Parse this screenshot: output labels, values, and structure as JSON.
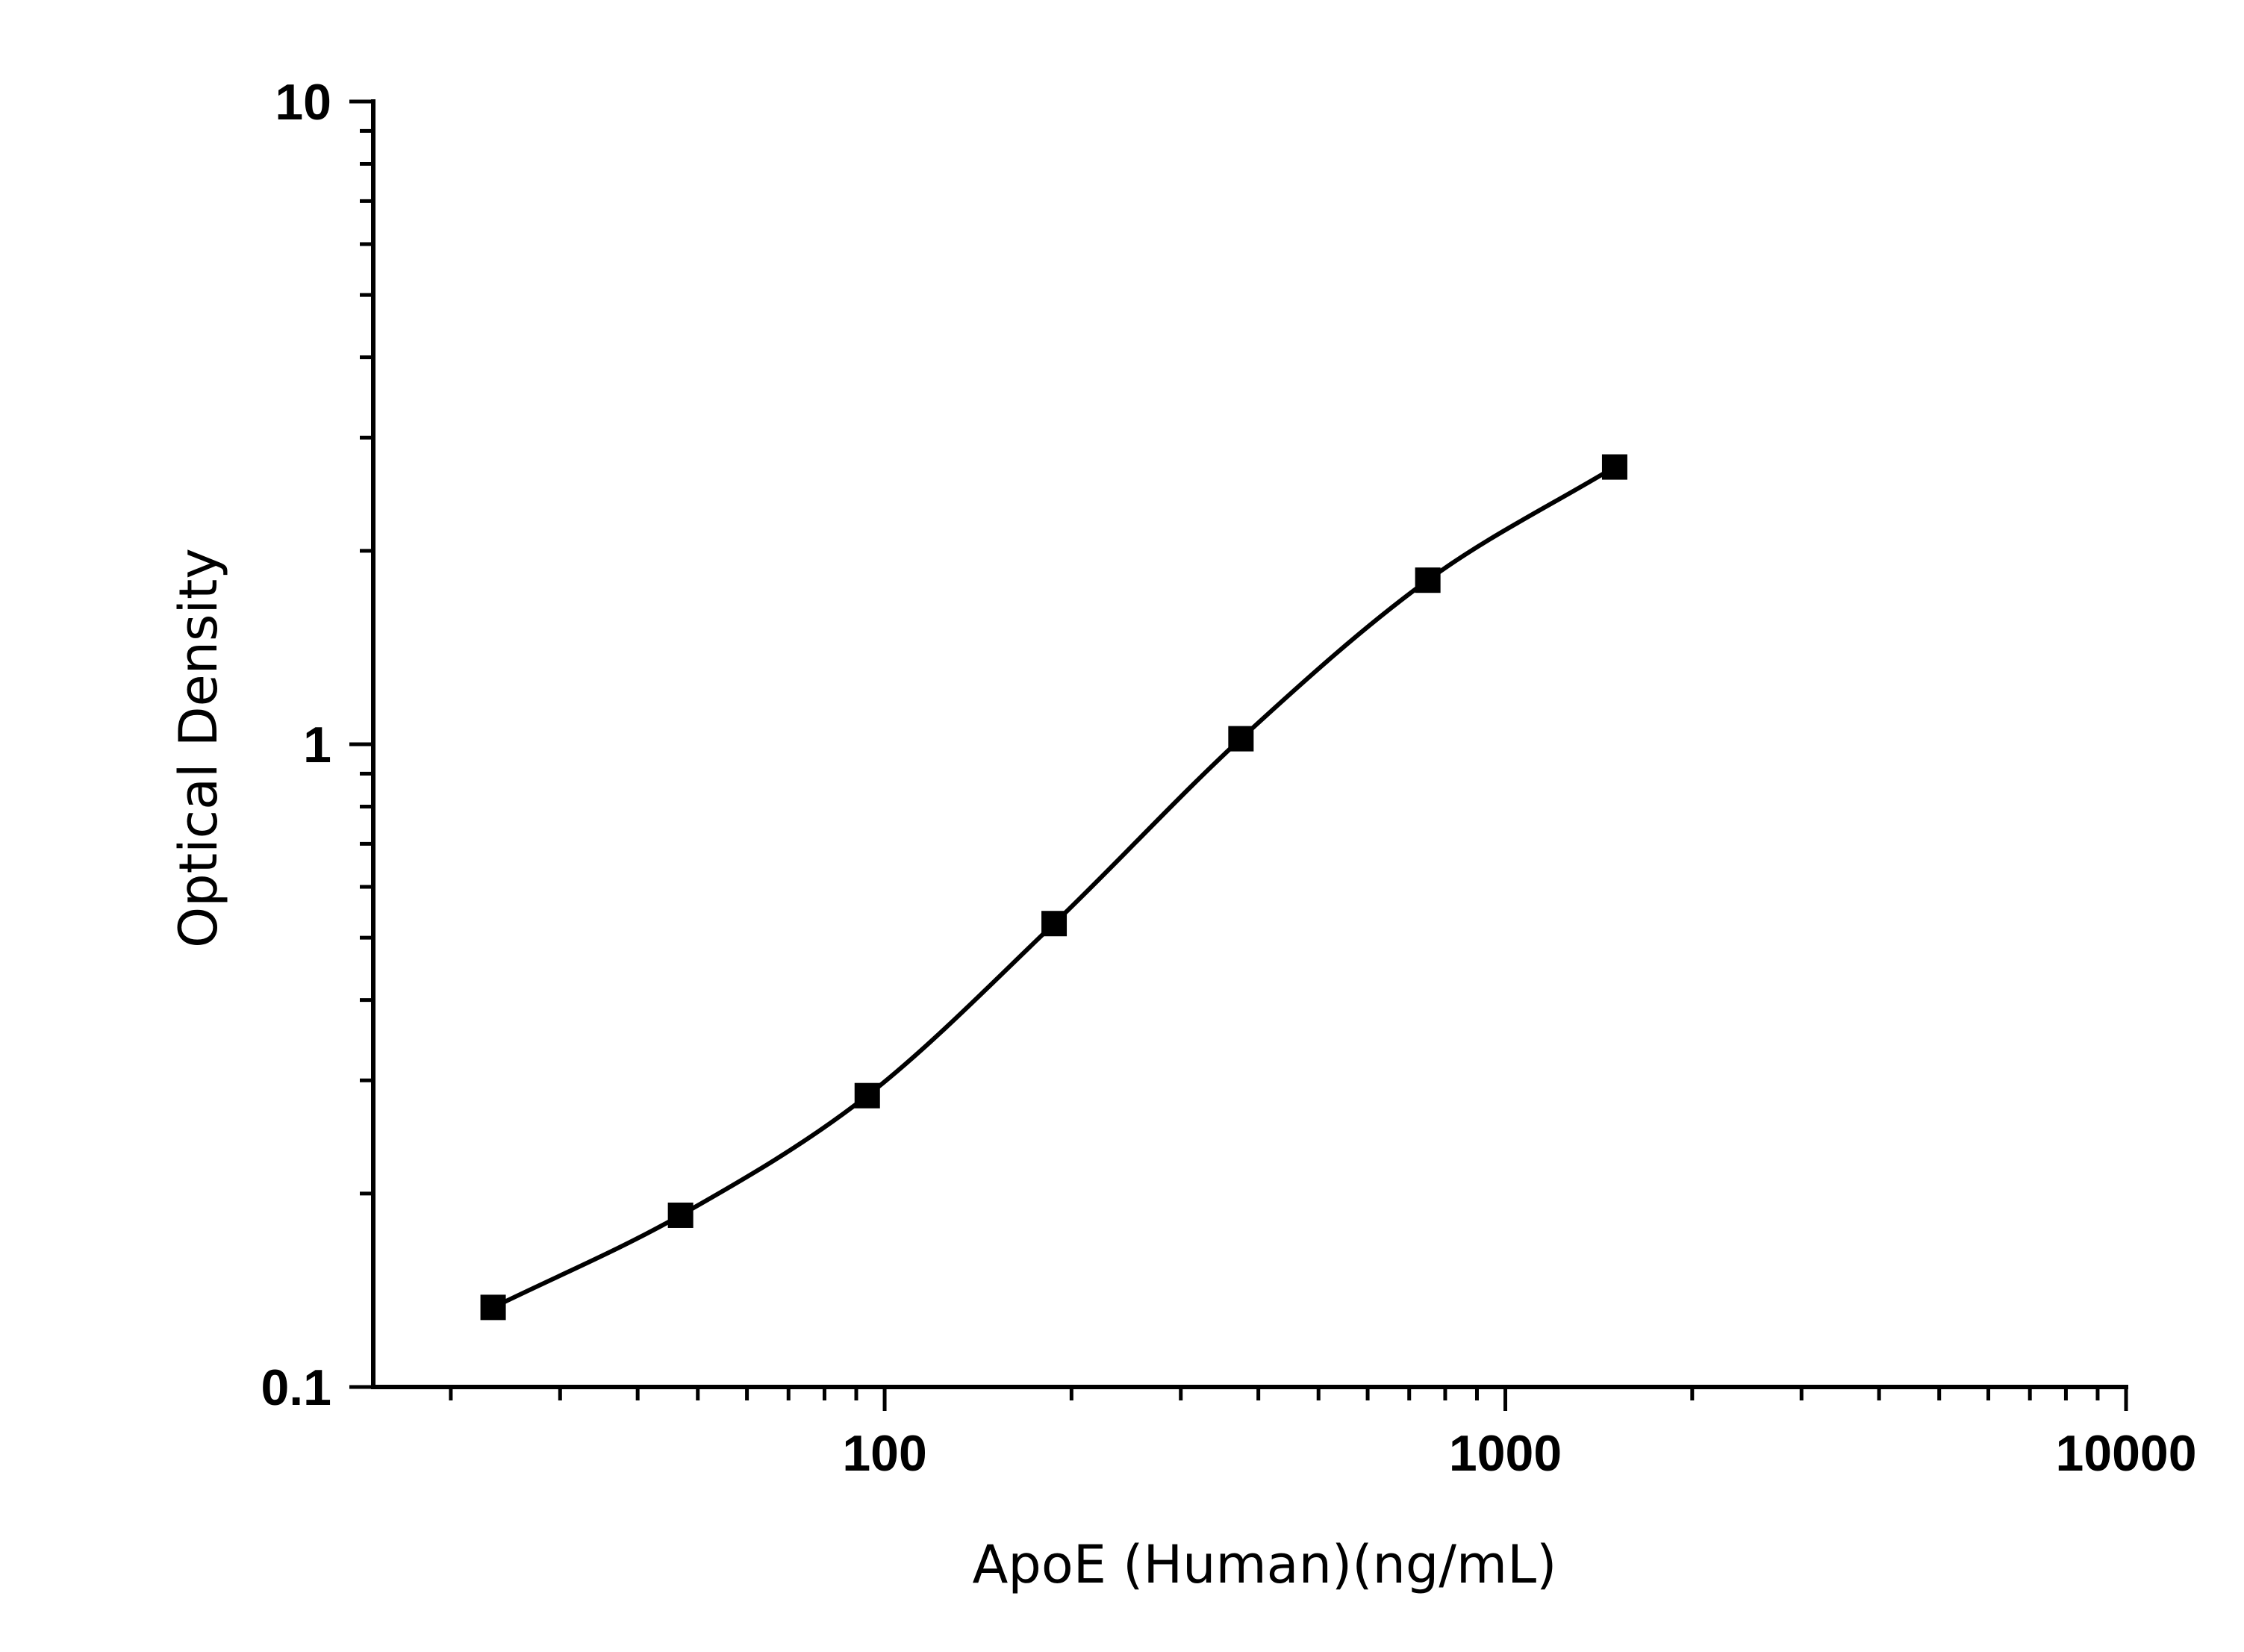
{
  "chart_data": {
    "type": "scatter",
    "title": "",
    "xlabel": "ApoE (Human)(ng/mL)",
    "ylabel": "Optical Density",
    "x_scale": "log",
    "y_scale": "log",
    "xlim": [
      15,
      10000
    ],
    "ylim": [
      0.1,
      10
    ],
    "x_ticks": [
      {
        "value": 100,
        "label": "100"
      },
      {
        "value": 1000,
        "label": "1000"
      },
      {
        "value": 10000,
        "label": "10000"
      }
    ],
    "y_ticks": [
      {
        "value": 0.1,
        "label": "0.1"
      },
      {
        "value": 1,
        "label": "1"
      },
      {
        "value": 10,
        "label": "10"
      }
    ],
    "grid": false,
    "legend": "none",
    "series": [
      {
        "x": [
          23.4,
          46.9,
          93.75,
          187.5,
          375,
          750,
          1500
        ],
        "y": [
          0.133,
          0.185,
          0.284,
          0.526,
          1.02,
          1.8,
          2.7
        ],
        "marker": "square",
        "color": "#000000",
        "fit": "four-parameter logistic curve"
      }
    ]
  }
}
